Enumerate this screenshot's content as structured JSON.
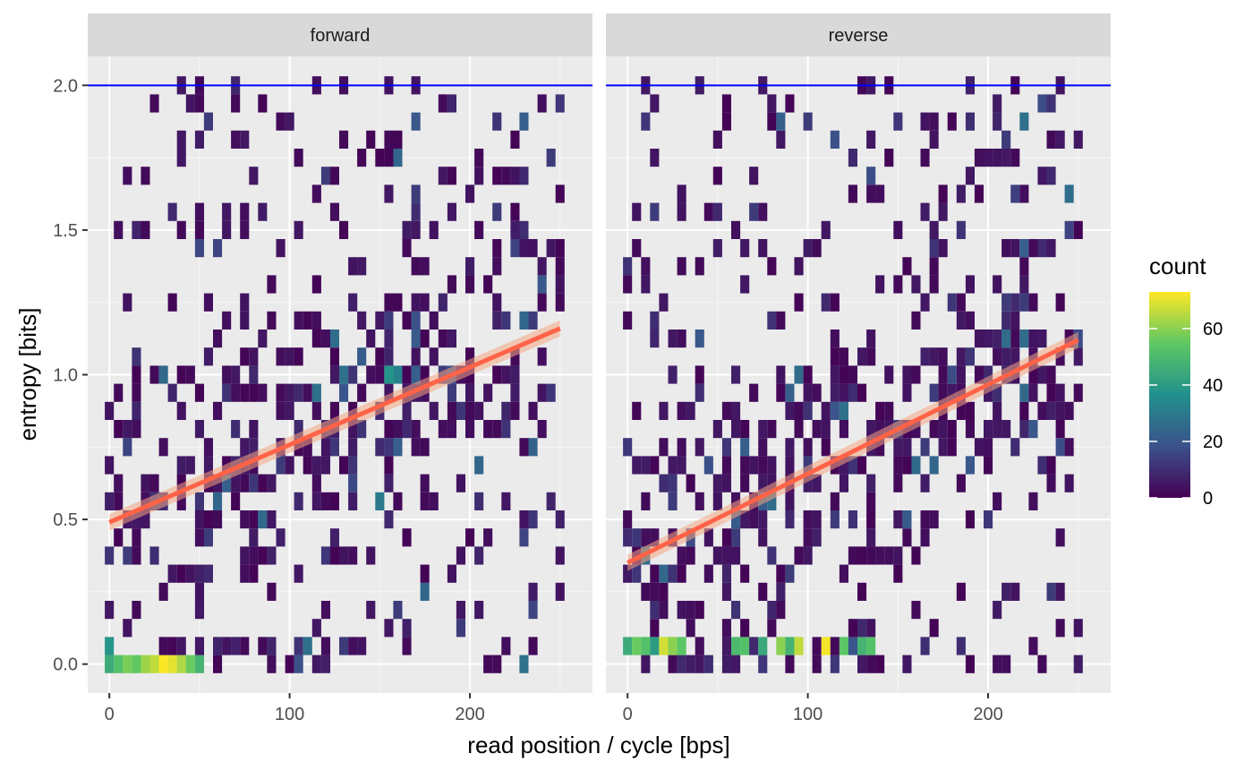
{
  "chart_data": {
    "type": "heatmap",
    "xlabel": "read position / cycle [bps]",
    "ylabel": "entropy [bits]",
    "xlim": [
      -12,
      268
    ],
    "ylim": [
      -0.1,
      2.1
    ],
    "x_ticks": [
      0,
      100,
      200
    ],
    "x_tick_labels": [
      "0",
      "100",
      "200"
    ],
    "y_ticks": [
      0.0,
      0.5,
      1.0,
      1.5,
      2.0
    ],
    "y_tick_labels": [
      "0.0",
      "0.5",
      "1.0",
      "1.5",
      "2.0"
    ],
    "grid": true,
    "legend": {
      "title": "count",
      "placement": "right",
      "ticks": [
        0,
        20,
        40,
        60
      ],
      "tick_labels": [
        "0",
        "20",
        "40",
        "60"
      ],
      "range": [
        0,
        73
      ],
      "colors": [
        "#440154",
        "#3B528B",
        "#21908C",
        "#5DC863",
        "#FDE725"
      ]
    },
    "reference_line": {
      "y": 2.0,
      "color": "#0000FF"
    },
    "facets": [
      {
        "name": "forward",
        "trend_line": {
          "x": [
            0,
            250
          ],
          "y": [
            0.49,
            1.16
          ],
          "color": "#FF6347"
        },
        "high_count_bins": [
          {
            "x": 0,
            "y": 0.0,
            "count": 45
          },
          {
            "x": 5,
            "y": 0.0,
            "count": 52
          },
          {
            "x": 10,
            "y": 0.0,
            "count": 58
          },
          {
            "x": 15,
            "y": 0.0,
            "count": 55
          },
          {
            "x": 20,
            "y": 0.0,
            "count": 62
          },
          {
            "x": 25,
            "y": 0.0,
            "count": 66
          },
          {
            "x": 30,
            "y": 0.0,
            "count": 73
          },
          {
            "x": 35,
            "y": 0.0,
            "count": 70
          },
          {
            "x": 40,
            "y": 0.0,
            "count": 64
          },
          {
            "x": 45,
            "y": 0.0,
            "count": 56
          },
          {
            "x": 50,
            "y": 0.0,
            "count": 48
          },
          {
            "x": 0,
            "y": 0.0625,
            "count": 38
          },
          {
            "x": 155,
            "y": 1.0,
            "count": 38
          },
          {
            "x": 160,
            "y": 1.0,
            "count": 32
          },
          {
            "x": 150,
            "y": 0.5625,
            "count": 30
          }
        ]
      },
      {
        "name": "reverse",
        "trend_line": {
          "x": [
            0,
            250
          ],
          "y": [
            0.35,
            1.12
          ],
          "color": "#FF6347"
        },
        "high_count_bins": [
          {
            "x": 0,
            "y": 0.0625,
            "count": 45
          },
          {
            "x": 5,
            "y": 0.0625,
            "count": 56
          },
          {
            "x": 10,
            "y": 0.0625,
            "count": 52
          },
          {
            "x": 15,
            "y": 0.0625,
            "count": 40
          },
          {
            "x": 20,
            "y": 0.0625,
            "count": 68
          },
          {
            "x": 25,
            "y": 0.0625,
            "count": 60
          },
          {
            "x": 30,
            "y": 0.0625,
            "count": 54
          },
          {
            "x": 60,
            "y": 0.0625,
            "count": 50
          },
          {
            "x": 65,
            "y": 0.0625,
            "count": 52
          },
          {
            "x": 75,
            "y": 0.0625,
            "count": 44
          },
          {
            "x": 85,
            "y": 0.0625,
            "count": 60
          },
          {
            "x": 90,
            "y": 0.0625,
            "count": 48
          },
          {
            "x": 95,
            "y": 0.0625,
            "count": 66
          },
          {
            "x": 110,
            "y": 0.0625,
            "count": 72
          },
          {
            "x": 120,
            "y": 0.0625,
            "count": 54
          },
          {
            "x": 130,
            "y": 0.0625,
            "count": 48
          },
          {
            "x": 135,
            "y": 0.0625,
            "count": 52
          }
        ]
      }
    ]
  }
}
